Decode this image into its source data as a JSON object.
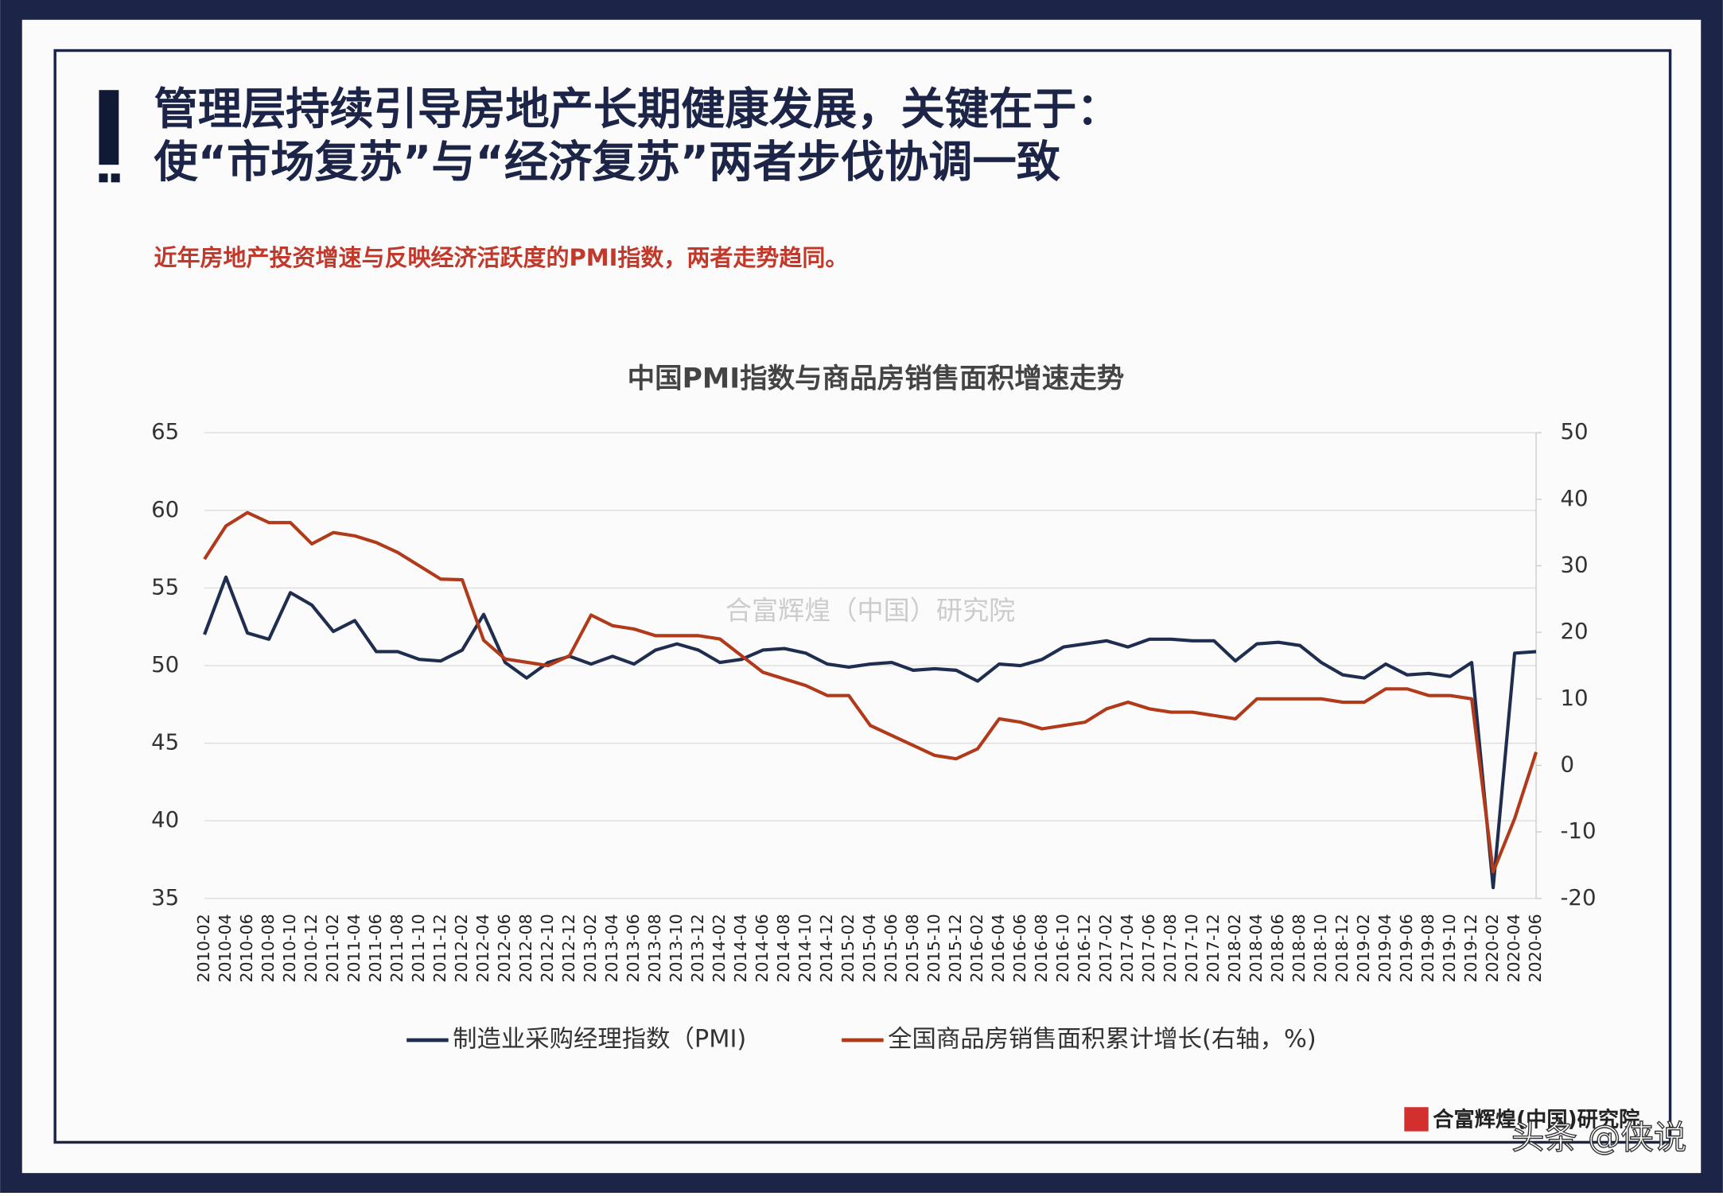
{
  "header": {
    "title_lines": [
      "管理层持续引导房地产长期健康发展，关键在于：",
      "使“市场复苏”与“经济复苏”两者步伐协调一致"
    ],
    "subtitle": "近年房地产投资增速与反映经济活跃度的PMI指数，两者走势趋同。"
  },
  "watermark": "合富辉煌（中国）研究院",
  "footer": {
    "logo_text": "合富辉煌(中国)研究院",
    "credit": "头条 @侠说"
  },
  "chart_data": {
    "type": "line",
    "title": "中国PMI指数与商品房销售面积增速走势",
    "categories": [
      "2010-02",
      "2010-04",
      "2010-06",
      "2010-08",
      "2010-10",
      "2010-12",
      "2011-02",
      "2011-04",
      "2011-06",
      "2011-08",
      "2011-10",
      "2011-12",
      "2012-02",
      "2012-04",
      "2012-06",
      "2012-08",
      "2012-10",
      "2012-12",
      "2013-02",
      "2013-04",
      "2013-06",
      "2013-08",
      "2013-10",
      "2013-12",
      "2014-02",
      "2014-04",
      "2014-06",
      "2014-08",
      "2014-10",
      "2014-12",
      "2015-02",
      "2015-04",
      "2015-06",
      "2015-08",
      "2015-10",
      "2015-12",
      "2016-02",
      "2016-04",
      "2016-06",
      "2016-08",
      "2016-10",
      "2016-12",
      "2017-02",
      "2017-04",
      "2017-06",
      "2017-08",
      "2017-10",
      "2017-12",
      "2018-02",
      "2018-04",
      "2018-06",
      "2018-08",
      "2018-10",
      "2018-12",
      "2019-02",
      "2019-04",
      "2019-06",
      "2019-08",
      "2019-10",
      "2019-12",
      "2020-02",
      "2020-04",
      "2020-06"
    ],
    "series": [
      {
        "name": "制造业采购经理指数（PMI)",
        "color": "#1f2d4f",
        "values": [
          52.0,
          55.7,
          52.1,
          51.7,
          54.7,
          53.9,
          52.2,
          52.9,
          50.9,
          50.9,
          50.4,
          50.3,
          51.0,
          53.3,
          50.2,
          49.2,
          50.2,
          50.6,
          50.1,
          50.6,
          50.1,
          51.0,
          51.4,
          51.0,
          50.2,
          50.4,
          51.0,
          51.1,
          50.8,
          50.1,
          49.9,
          50.1,
          50.2,
          49.7,
          49.8,
          49.7,
          49.0,
          50.1,
          50.0,
          50.4,
          51.2,
          51.4,
          51.6,
          51.2,
          51.7,
          51.7,
          51.6,
          51.6,
          50.3,
          51.4,
          51.5,
          51.3,
          50.2,
          49.4,
          49.2,
          50.1,
          49.4,
          49.5,
          49.3,
          50.2,
          35.7,
          50.8,
          50.9
        ]
      },
      {
        "name": "全国商品房销售面积累计增长(右轴，%)",
        "color": "#b03a1a",
        "axis": "y2",
        "values": [
          31,
          36,
          38,
          36.5,
          36.5,
          33.3,
          35,
          34.5,
          33.5,
          32,
          30,
          28,
          27.9,
          18.8,
          16,
          15.5,
          15,
          16.5,
          22.6,
          21,
          20.5,
          19.5,
          19.5,
          19.5,
          19,
          16.5,
          14,
          13,
          12,
          10.5,
          10.5,
          6,
          4.5,
          3,
          1.5,
          1,
          2.5,
          7,
          6.5,
          5.5,
          6,
          6.5,
          8.5,
          9.5,
          8.5,
          8,
          8,
          7.5,
          7,
          10,
          10,
          10,
          10,
          9.5,
          9.5,
          11.5,
          11.5,
          10.5,
          10.5,
          10,
          -16,
          -8,
          2
        ]
      }
    ],
    "ylim": [
      35,
      65
    ],
    "yticks": [
      35,
      40,
      45,
      50,
      55,
      60,
      65
    ],
    "y2lim": [
      -20,
      50
    ],
    "y2ticks": [
      -20,
      -10,
      0,
      10,
      20,
      30,
      40,
      50
    ],
    "grid": true,
    "legend": "bottom"
  }
}
